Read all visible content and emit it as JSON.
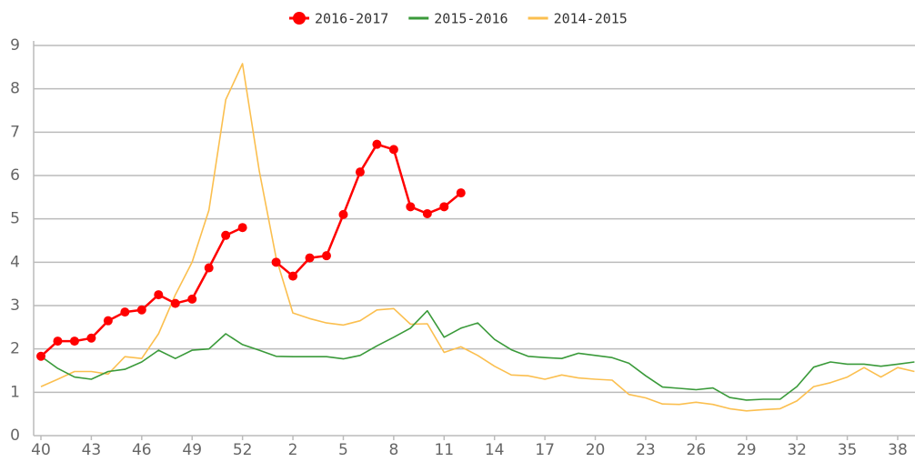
{
  "chart_data": {
    "type": "line",
    "categories": [
      "40",
      null,
      null,
      "43",
      null,
      null,
      "46",
      null,
      null,
      "49",
      null,
      null,
      "52",
      null,
      null,
      "2",
      null,
      null,
      "5",
      null,
      null,
      "8",
      null,
      null,
      "11",
      null,
      null,
      "14",
      null,
      null,
      "17",
      null,
      null,
      "20",
      null,
      null,
      "23",
      null,
      null,
      "26",
      null,
      null,
      "29",
      null,
      null,
      "32",
      null,
      null,
      "35",
      null,
      null,
      "38",
      null
    ],
    "ylim": [
      0,
      9
    ],
    "yticks": [
      0,
      1,
      2,
      3,
      4,
      5,
      6,
      7,
      8,
      9
    ],
    "grid": true,
    "legend": "top",
    "series": [
      {
        "name": "2016-2017",
        "color": "#ff0000",
        "markers": true,
        "values": [
          1.83,
          2.18,
          2.18,
          2.25,
          2.65,
          2.85,
          2.9,
          3.25,
          3.05,
          3.15,
          3.87,
          4.62,
          4.8,
          null,
          4.0,
          3.68,
          4.1,
          4.15,
          5.1,
          6.08,
          6.72,
          6.6,
          5.28,
          5.12,
          5.28,
          5.6,
          null,
          null,
          null,
          null,
          null,
          null,
          null,
          null,
          null,
          null,
          null,
          null,
          null,
          null,
          null,
          null,
          null,
          null,
          null,
          null,
          null,
          null,
          null,
          null,
          null,
          null,
          null
        ]
      },
      {
        "name": "2015-2016",
        "color": "#3a9a3a",
        "values": [
          1.83,
          1.55,
          1.35,
          1.3,
          1.48,
          1.53,
          1.7,
          1.97,
          1.78,
          1.97,
          2.0,
          2.35,
          2.1,
          1.97,
          1.83,
          1.82,
          1.82,
          1.82,
          1.77,
          1.85,
          2.07,
          2.27,
          2.48,
          2.88,
          2.27,
          2.48,
          2.6,
          2.22,
          1.98,
          1.83,
          1.8,
          1.78,
          1.9,
          1.85,
          1.8,
          1.67,
          1.38,
          1.12,
          1.09,
          1.06,
          1.1,
          0.88,
          0.82,
          0.84,
          0.84,
          1.13,
          1.58,
          1.7,
          1.65,
          1.65,
          1.6,
          1.65,
          1.7
        ]
      },
      {
        "name": "2014-2015",
        "color": "#fbbf4f",
        "values": [
          1.13,
          1.3,
          1.48,
          1.48,
          1.42,
          1.82,
          1.78,
          2.35,
          3.25,
          4.0,
          5.2,
          7.75,
          8.58,
          6.1,
          4.1,
          2.83,
          2.7,
          2.6,
          2.55,
          2.65,
          2.9,
          2.93,
          2.57,
          2.58,
          1.92,
          2.05,
          1.85,
          1.6,
          1.4,
          1.38,
          1.3,
          1.4,
          1.33,
          1.3,
          1.28,
          0.95,
          0.87,
          0.73,
          0.72,
          0.77,
          0.72,
          0.62,
          0.57,
          0.6,
          0.62,
          0.8,
          1.13,
          1.22,
          1.35,
          1.57,
          1.35,
          1.57,
          1.48
        ]
      }
    ]
  }
}
